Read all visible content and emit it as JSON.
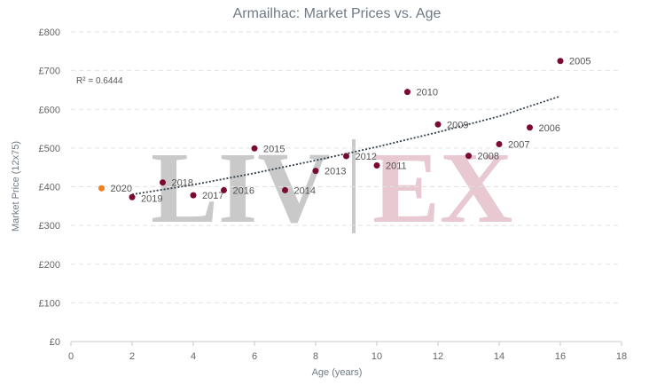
{
  "chart_data": {
    "type": "scatter",
    "title": "Armailhac: Market Prices vs. Age",
    "xlabel": "Age (years)",
    "ylabel": "Market Price (12x75)",
    "xlim": [
      0,
      18
    ],
    "ylim": [
      0,
      800
    ],
    "x_ticks": [
      "0",
      "2",
      "4",
      "6",
      "8",
      "10",
      "12",
      "14",
      "16",
      "18"
    ],
    "y_ticks": [
      "£0",
      "£100",
      "£200",
      "£300",
      "£400",
      "£500",
      "£600",
      "£700",
      "£800"
    ],
    "grid": true,
    "annotation": "R² = 0.6444",
    "watermark": {
      "left": "LIV",
      "right": "EX"
    },
    "colors": {
      "points": "#7a0a32",
      "highlight": "#f07f1e",
      "trendline": "#333f4b",
      "grid": "#e2e2e2"
    },
    "points": [
      {
        "label": "2020",
        "x": 1,
        "y": 396,
        "highlight": true
      },
      {
        "label": "2019",
        "x": 2,
        "y": 373
      },
      {
        "label": "2018",
        "x": 3,
        "y": 411
      },
      {
        "label": "2017",
        "x": 4,
        "y": 378
      },
      {
        "label": "2016",
        "x": 5,
        "y": 391
      },
      {
        "label": "2015",
        "x": 6,
        "y": 499
      },
      {
        "label": "2014",
        "x": 7,
        "y": 391
      },
      {
        "label": "2013",
        "x": 8,
        "y": 441
      },
      {
        "label": "2012",
        "x": 9,
        "y": 479
      },
      {
        "label": "2011",
        "x": 10,
        "y": 455
      },
      {
        "label": "2010",
        "x": 11,
        "y": 645
      },
      {
        "label": "2009",
        "x": 12,
        "y": 561
      },
      {
        "label": "2008",
        "x": 13,
        "y": 480
      },
      {
        "label": "2007",
        "x": 14,
        "y": 510
      },
      {
        "label": "2006",
        "x": 15,
        "y": 553
      },
      {
        "label": "2005",
        "x": 16,
        "y": 725
      }
    ],
    "trendline": {
      "type": "exponential",
      "x": [
        2,
        4,
        6,
        8,
        10,
        12,
        14,
        16
      ],
      "y": [
        380,
        405,
        435,
        468,
        503,
        541,
        582,
        634
      ]
    }
  }
}
